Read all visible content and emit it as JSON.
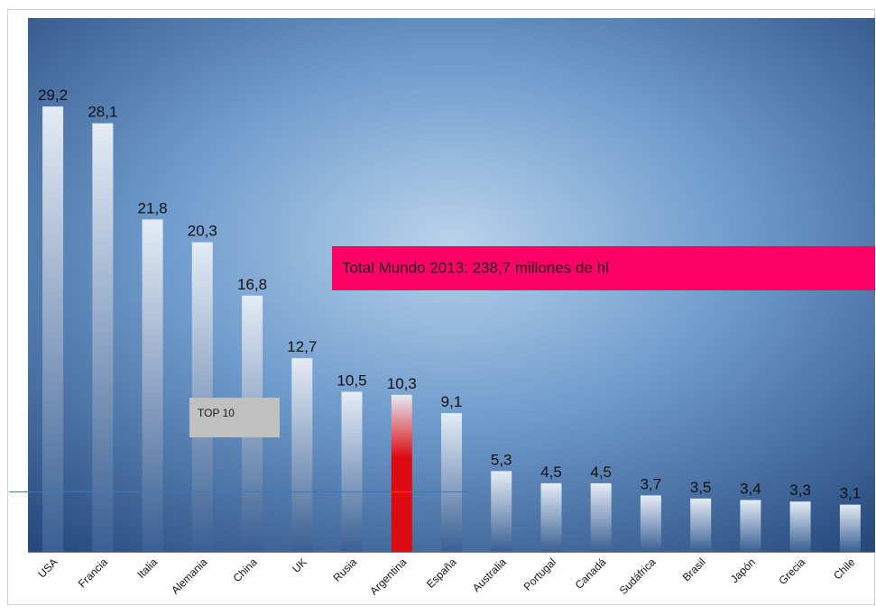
{
  "chart_data": {
    "type": "bar",
    "categories": [
      "USA",
      "Francia",
      "Italia",
      "Alemania",
      "China",
      "UK",
      "Rusia",
      "Argentina",
      "España",
      "Australia",
      "Portugal",
      "Canadá",
      "Sudáfrica",
      "Brasil",
      "Japón",
      "Grecia",
      "Chile"
    ],
    "values": [
      29.2,
      28.1,
      21.8,
      20.3,
      16.8,
      12.7,
      10.5,
      10.3,
      9.1,
      5.3,
      4.5,
      4.5,
      3.7,
      3.5,
      3.4,
      3.3,
      3.1
    ],
    "value_labels": [
      "29,2",
      "28,1",
      "21,8",
      "20,3",
      "16,8",
      "12,7",
      "10,5",
      "10,3",
      "9,1",
      "5,3",
      "4,5",
      "4,5",
      "3,7",
      "3,5",
      "3,4",
      "3,3",
      "3,1"
    ],
    "highlight_category": "Argentina",
    "ylim": [
      0,
      35
    ],
    "title": "",
    "xlabel": "",
    "ylabel": "",
    "grid": false,
    "annotations": {
      "total": "Total Mundo 2013: 238,7 millones de hl",
      "top10": "TOP 10"
    }
  },
  "colors": {
    "background_center": "#b9d2ea",
    "background_mid": "#6f9ccd",
    "background_edge": "#27497c",
    "bar_top": "#e4ecf6",
    "bar_bottom": "#3a5f93",
    "highlight_bar": "#dd0a12",
    "total_box": "#ff0066",
    "top10_box": "#c0c0c0"
  }
}
